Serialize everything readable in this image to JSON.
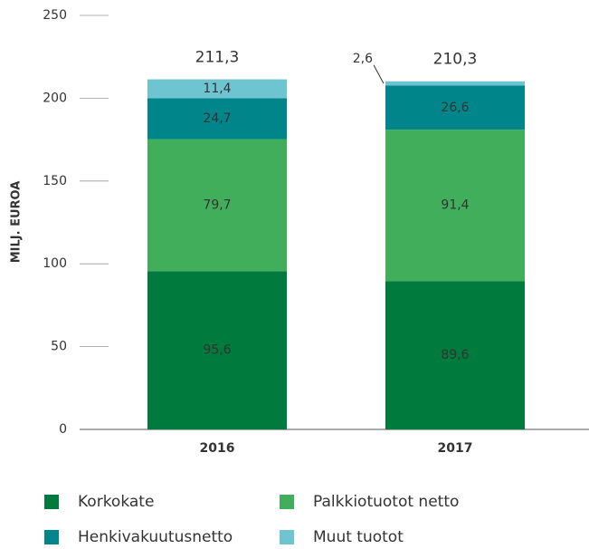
{
  "chart_data": {
    "type": "stacked_bar",
    "y_label": "MILJ. EUROA",
    "categories": [
      "2016",
      "2017"
    ],
    "series": [
      {
        "name": "Korkokate",
        "color": "#007a3d",
        "values": [
          95.6,
          89.6
        ],
        "value_labels": [
          "95,6",
          "89,6"
        ]
      },
      {
        "name": "Palkkiotuotot netto",
        "color": "#40ae5b",
        "values": [
          79.7,
          91.4
        ],
        "value_labels": [
          "79,7",
          "91,4"
        ]
      },
      {
        "name": "Henkivakuutusnetto",
        "color": "#00868a",
        "values": [
          24.7,
          26.6
        ],
        "value_labels": [
          "24,7",
          "26,6"
        ]
      },
      {
        "name": "Muut tuotot",
        "color": "#6ec4d0",
        "values": [
          11.4,
          2.6
        ],
        "value_labels": [
          "11,4",
          "2,6"
        ]
      }
    ],
    "totals": [
      211.3,
      210.3
    ],
    "total_labels": [
      "211,3",
      "210,3"
    ],
    "ylim": [
      0,
      250
    ],
    "yticks": [
      0,
      50,
      100,
      150,
      200,
      250
    ]
  }
}
